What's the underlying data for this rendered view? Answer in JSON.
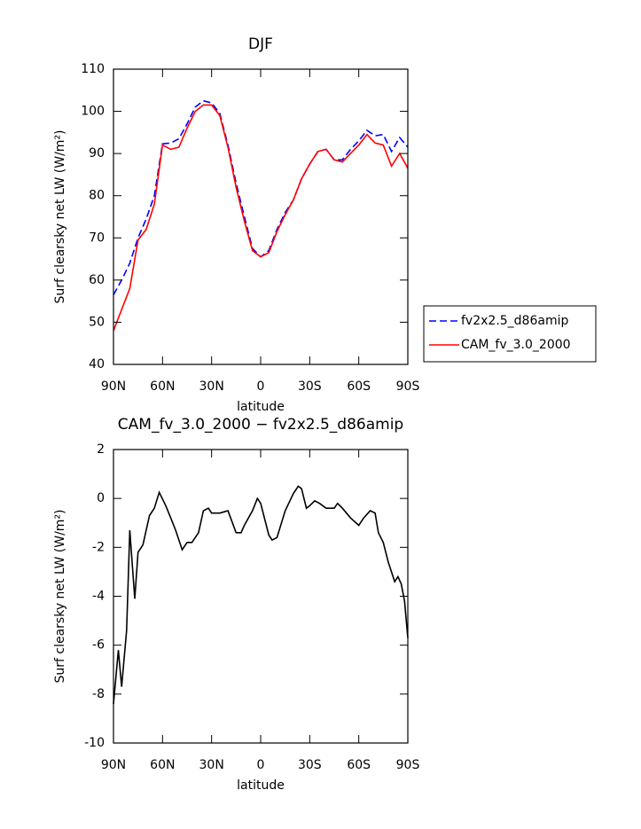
{
  "chart_data": [
    {
      "type": "line",
      "title": "DJF",
      "x_label": "latitude",
      "y_label": "Surf clearsky net LW (W/m²)",
      "x": [
        90,
        85,
        80,
        75,
        70,
        65,
        60,
        55,
        50,
        45,
        40,
        35,
        30,
        25,
        20,
        15,
        10,
        5,
        0,
        -5,
        -10,
        -15,
        -20,
        -25,
        -30,
        -35,
        -40,
        -45,
        -50,
        -55,
        -60,
        -65,
        -70,
        -75,
        -80,
        -85,
        -90
      ],
      "series": [
        {
          "name": "fv2x2.5_d86amip",
          "color": "#0000ff",
          "dashed": true,
          "values": [
            56.5,
            60,
            64,
            70,
            74.5,
            80,
            92.3,
            92.5,
            93.5,
            97,
            101,
            102.5,
            102,
            99.5,
            92,
            83,
            75,
            67.5,
            65.5,
            67,
            72,
            76,
            79,
            84,
            87.5,
            90.5,
            91,
            88.5,
            88.5,
            91,
            93,
            95.5,
            94.2,
            94.5,
            90.5,
            93.8,
            91.5
          ]
        },
        {
          "name": "CAM_fv_3.0_2000",
          "color": "#ff0000",
          "dashed": false,
          "values": [
            48,
            53,
            58,
            69.5,
            72,
            78,
            92,
            91,
            91.5,
            96,
            100,
            101.5,
            101.5,
            99,
            91.5,
            82,
            74,
            67,
            65.5,
            66.5,
            71.5,
            75.5,
            79,
            84,
            87.5,
            90.5,
            91,
            88.5,
            88,
            90,
            92,
            94.5,
            92.5,
            92,
            87,
            90,
            86.5
          ]
        }
      ],
      "xlim": [
        90,
        -90
      ],
      "xticks": [
        {
          "value": 90,
          "label": "90N"
        },
        {
          "value": 60,
          "label": "60N"
        },
        {
          "value": 30,
          "label": "30N"
        },
        0,
        {
          "value": -30,
          "label": "30S"
        },
        {
          "value": -60,
          "label": "60S"
        },
        {
          "value": -90,
          "label": "90S"
        }
      ],
      "ylim": [
        40,
        110
      ],
      "yticks": [
        40,
        50,
        60,
        70,
        80,
        90,
        100,
        110
      ],
      "legend": "right"
    },
    {
      "type": "line",
      "title": "CAM_fv_3.0_2000 − fv2x2.5_d86amip",
      "x_label": "latitude",
      "y_label": "Surf clearsky net LW (W/m²)",
      "x": [
        90,
        87,
        85,
        82,
        80,
        77,
        75,
        72,
        68,
        65,
        62,
        58,
        55,
        52,
        48,
        45,
        42,
        38,
        35,
        32,
        30,
        25,
        20,
        15,
        12,
        10,
        5,
        2,
        0,
        -5,
        -7,
        -10,
        -15,
        -20,
        -23,
        -25,
        -28,
        -30,
        -33,
        -36,
        -40,
        -45,
        -47,
        -50,
        -55,
        -60,
        -63,
        -67,
        -70,
        -72,
        -75,
        -78,
        -82,
        -84,
        -86,
        -88,
        -90
      ],
      "series": [
        {
          "color": "#000000",
          "dashed": false,
          "values": [
            -8.4,
            -6.2,
            -7.7,
            -5.4,
            -1.3,
            -4.1,
            -2.2,
            -1.9,
            -0.7,
            -0.4,
            0.25,
            -0.3,
            -0.8,
            -1.3,
            -2.1,
            -1.8,
            -1.8,
            -1.4,
            -0.5,
            -0.4,
            -0.6,
            -0.6,
            -0.5,
            -1.4,
            -1.4,
            -1.1,
            -0.5,
            0,
            -0.2,
            -1.5,
            -1.7,
            -1.6,
            -0.5,
            0.2,
            0.5,
            0.4,
            -0.4,
            -0.3,
            -0.1,
            -0.2,
            -0.4,
            -0.4,
            -0.2,
            -0.4,
            -0.8,
            -1.1,
            -0.8,
            -0.5,
            -0.6,
            -1.4,
            -1.8,
            -2.6,
            -3.4,
            -3.2,
            -3.5,
            -4.2,
            -5.7
          ]
        }
      ],
      "xlim": [
        90,
        -90
      ],
      "xticks": [
        {
          "value": 90,
          "label": "90N"
        },
        {
          "value": 60,
          "label": "60N"
        },
        {
          "value": 30,
          "label": "30N"
        },
        0,
        {
          "value": -30,
          "label": "30S"
        },
        {
          "value": -60,
          "label": "60S"
        },
        {
          "value": -90,
          "label": "90S"
        }
      ],
      "ylim": [
        -10,
        2
      ],
      "yticks": [
        -10,
        -8,
        -6,
        -4,
        -2,
        0,
        2
      ]
    }
  ]
}
